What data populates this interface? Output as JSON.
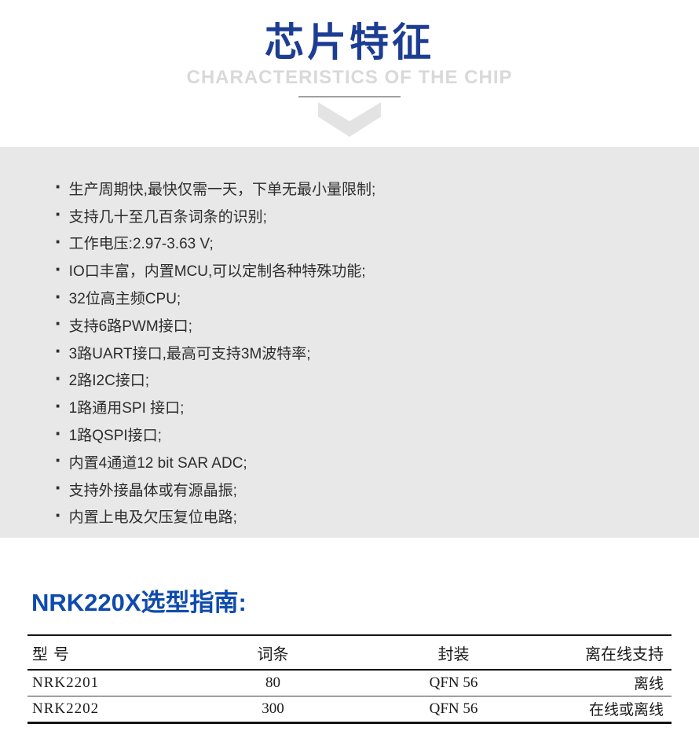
{
  "colors": {
    "title-blue": "#1c3d92",
    "section-blue": "#0e4bad",
    "subtitle-gray": "#d9d9d9",
    "divider-gray": "#a0a0a0",
    "chevron-gray": "#e3e3e3",
    "band-bg": "#e8e8e8",
    "list-text": "#2d2d2d",
    "table-text": "#1a1a1a"
  },
  "header": {
    "title": "芯片特征",
    "subtitle": "CHARACTERISTICS OF THE CHIP"
  },
  "list": {
    "bullet": "·",
    "items": [
      "生产周期快,最快仅需一天，下单无最小量限制;",
      "支持几十至几百条词条的识别;",
      "工作电压:2.97-3.63 V;",
      "IO口丰富，内置MCU,可以定制各种特殊功能;",
      "32位高主频CPU;",
      "支持6路PWM接口;",
      "3路UART接口,最高可支持3M波特率;",
      "2路I2C接口;",
      "1路通用SPI 接口;",
      "1路QSPI接口;",
      "内置4通道12 bit SAR ADC;",
      "支持外接晶体或有源晶振;",
      "内置上电及欠压复位电路;"
    ]
  },
  "guide": {
    "title": "NRK220X选型指南:",
    "table": {
      "headers": [
        "型 号",
        "词条",
        "封装",
        "离在线支持"
      ],
      "rows": [
        [
          "NRK2201",
          "80",
          "QFN 56",
          "离线"
        ],
        [
          "NRK2202",
          "300",
          "QFN 56",
          "在线或离线"
        ]
      ]
    }
  }
}
